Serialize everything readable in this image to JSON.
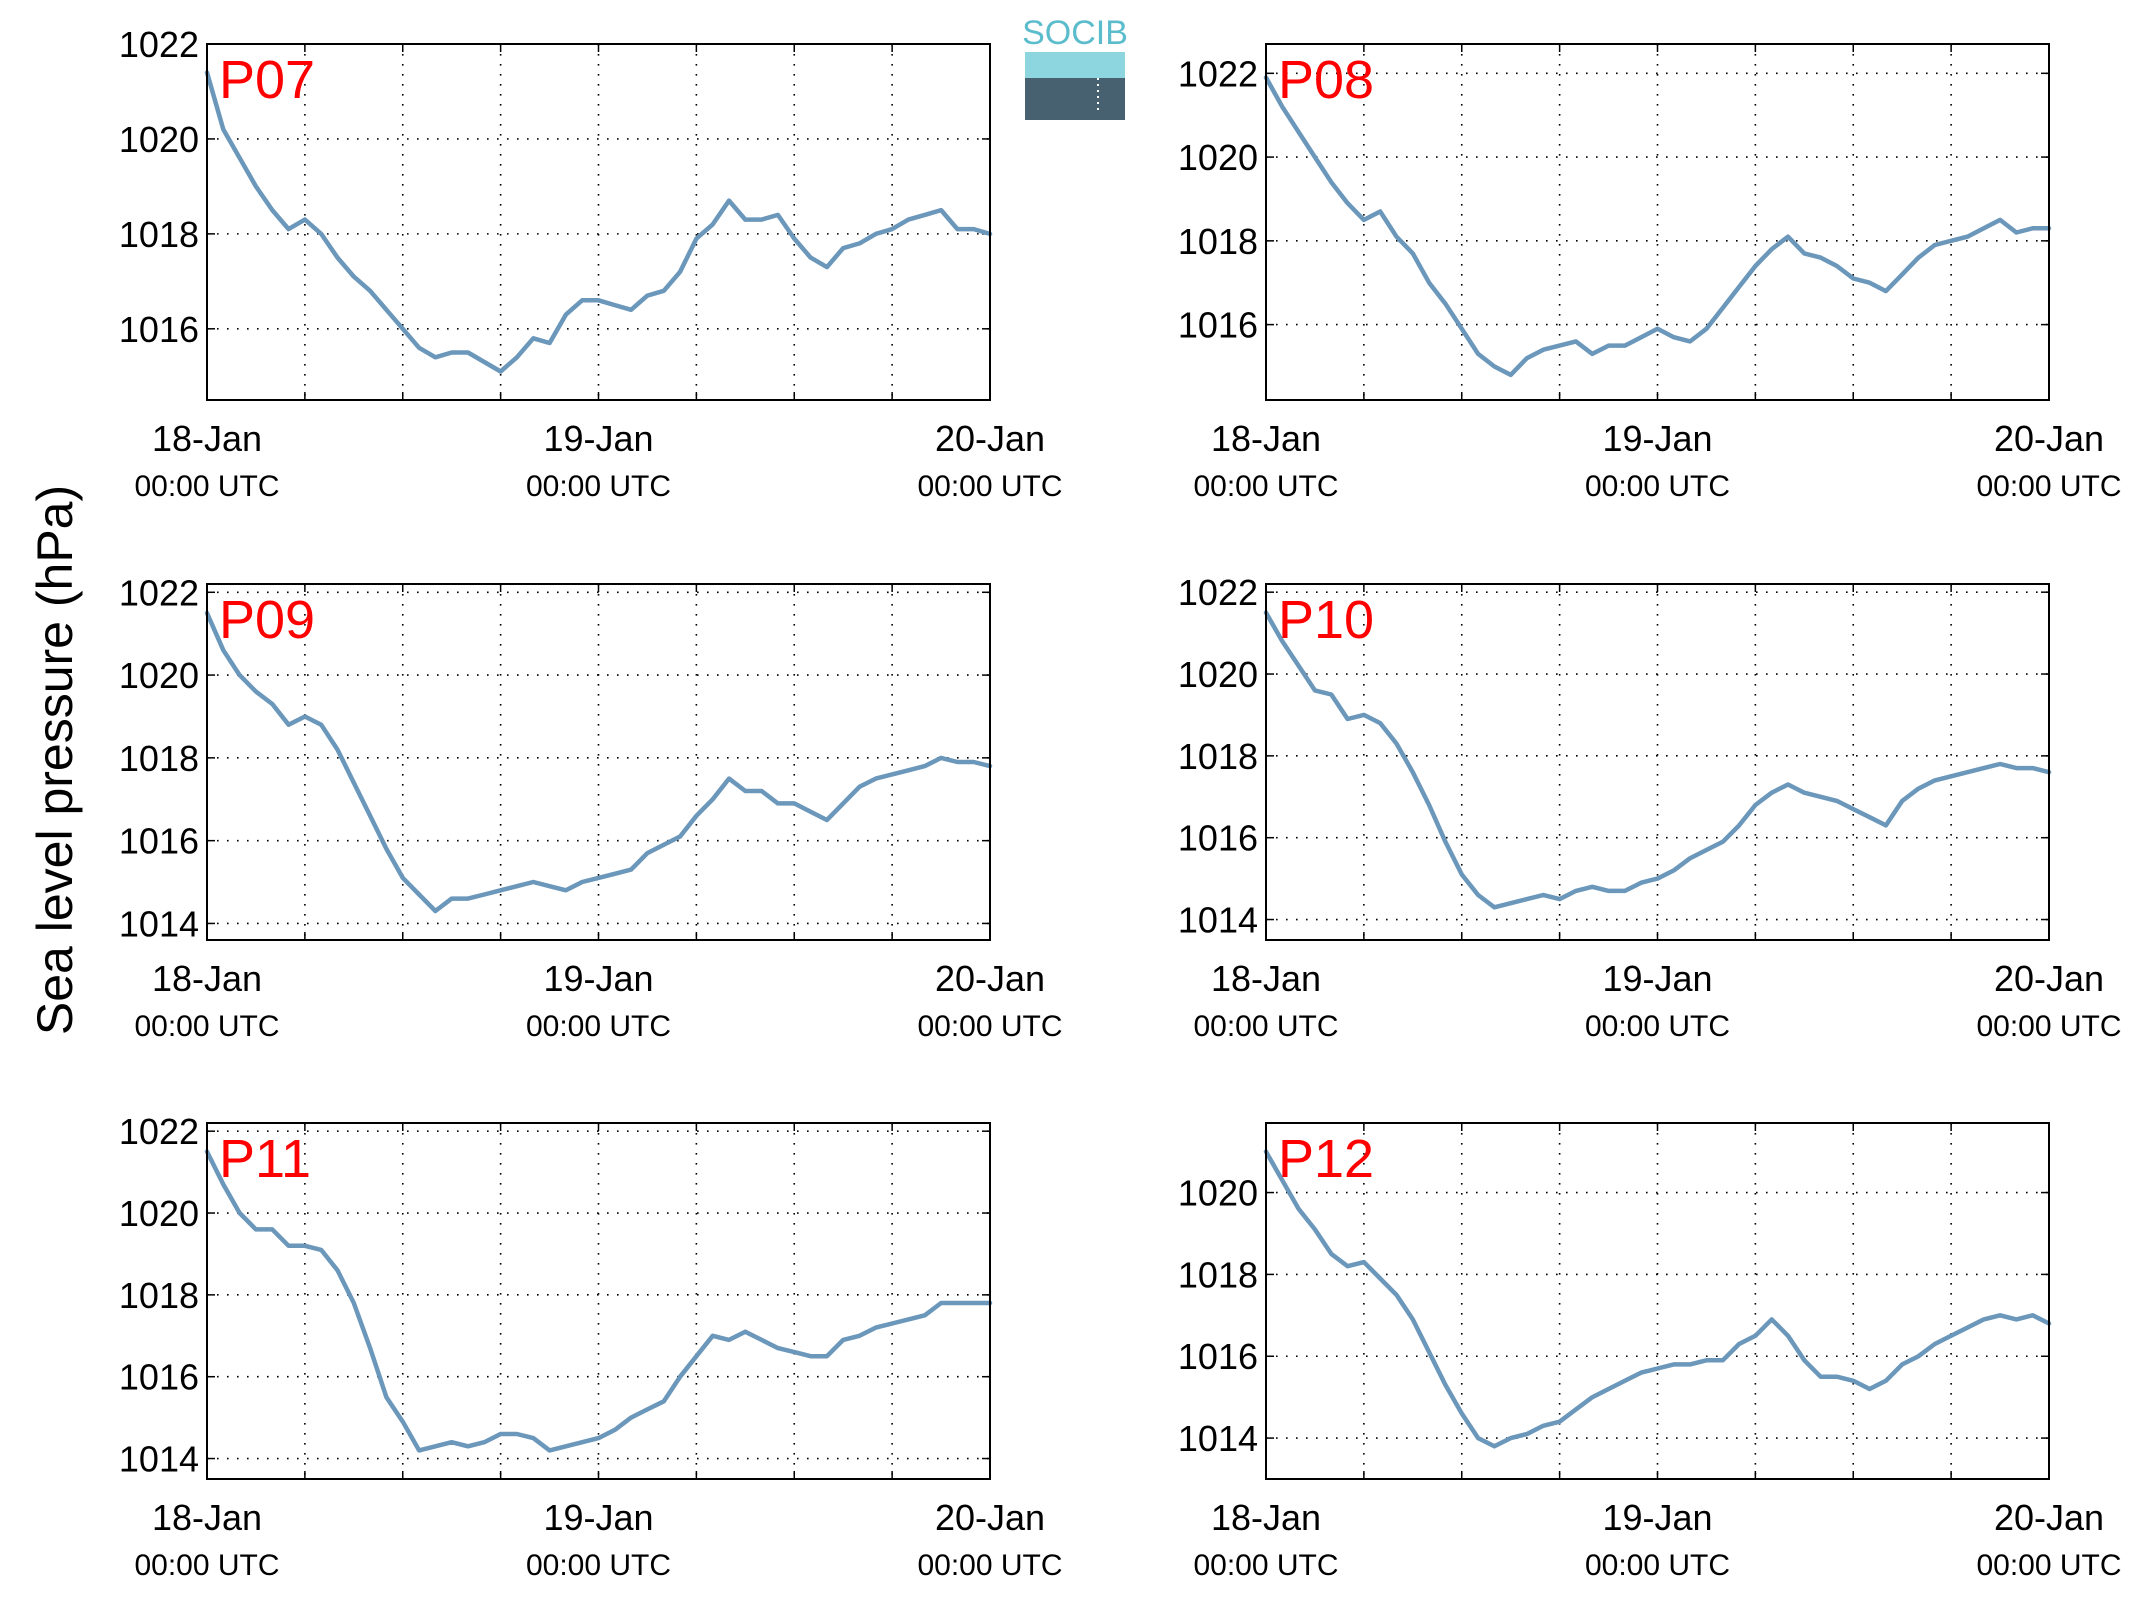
{
  "figure": {
    "ylabel": "Sea level pressure (hPa)",
    "logo": {
      "text": "SOCIB",
      "color": "#5bbccc"
    }
  },
  "style": {
    "line_color": "#6b97bb",
    "label_color": "#ff0000",
    "grid": "dotted"
  },
  "chart_data": [
    {
      "type": "line",
      "title": "P07",
      "x_ticks": [
        {
          "main": "18-Jan",
          "sub": "00:00 UTC"
        },
        {
          "main": "19-Jan",
          "sub": "00:00 UTC"
        },
        {
          "main": "20-Jan",
          "sub": "00:00 UTC"
        }
      ],
      "xlim": [
        0,
        48
      ],
      "ylim": [
        1014.5,
        1022
      ],
      "yticks": [
        1016,
        1018,
        1020,
        1022
      ],
      "series": [
        {
          "x": [
            0,
            1,
            2,
            3,
            4,
            5,
            6,
            7,
            8,
            9,
            10,
            11,
            12,
            13,
            14,
            15,
            16,
            17,
            18,
            19,
            20,
            21,
            22,
            23,
            24,
            25,
            26,
            27,
            28,
            29,
            30,
            31,
            32,
            33,
            34,
            35,
            36,
            37,
            38,
            39,
            40,
            41,
            42,
            43,
            44,
            45,
            46,
            47,
            48
          ],
          "y": [
            1021.4,
            1020.2,
            1019.6,
            1019.0,
            1018.5,
            1018.1,
            1018.3,
            1018.0,
            1017.5,
            1017.1,
            1016.8,
            1016.4,
            1016.0,
            1015.6,
            1015.4,
            1015.5,
            1015.5,
            1015.3,
            1015.1,
            1015.4,
            1015.8,
            1015.7,
            1016.3,
            1016.6,
            1016.6,
            1016.5,
            1016.4,
            1016.7,
            1016.8,
            1017.2,
            1017.9,
            1018.2,
            1018.7,
            1018.3,
            1018.3,
            1018.4,
            1017.9,
            1017.5,
            1017.3,
            1017.7,
            1017.8,
            1018.0,
            1018.1,
            1018.3,
            1018.4,
            1018.5,
            1018.1,
            1018.1,
            1018.0
          ]
        }
      ]
    },
    {
      "type": "line",
      "title": "P08",
      "x_ticks": [
        {
          "main": "18-Jan",
          "sub": "00:00 UTC"
        },
        {
          "main": "19-Jan",
          "sub": "00:00 UTC"
        },
        {
          "main": "20-Jan",
          "sub": "00:00 UTC"
        }
      ],
      "xlim": [
        0,
        48
      ],
      "ylim": [
        1014.2,
        1022.7
      ],
      "yticks": [
        1016,
        1018,
        1020,
        1022
      ],
      "series": [
        {
          "x": [
            0,
            1,
            2,
            3,
            4,
            5,
            6,
            7,
            8,
            9,
            10,
            11,
            12,
            13,
            14,
            15,
            16,
            17,
            18,
            19,
            20,
            21,
            22,
            23,
            24,
            25,
            26,
            27,
            28,
            29,
            30,
            31,
            32,
            33,
            34,
            35,
            36,
            37,
            38,
            39,
            40,
            41,
            42,
            43,
            44,
            45,
            46,
            47,
            48
          ],
          "y": [
            1021.9,
            1021.2,
            1020.6,
            1020.0,
            1019.4,
            1018.9,
            1018.5,
            1018.7,
            1018.1,
            1017.7,
            1017.0,
            1016.5,
            1015.9,
            1015.3,
            1015.0,
            1014.8,
            1015.2,
            1015.4,
            1015.5,
            1015.6,
            1015.3,
            1015.5,
            1015.5,
            1015.7,
            1015.9,
            1015.7,
            1015.6,
            1015.9,
            1016.4,
            1016.9,
            1017.4,
            1017.8,
            1018.1,
            1017.7,
            1017.6,
            1017.4,
            1017.1,
            1017.0,
            1016.8,
            1017.2,
            1017.6,
            1017.9,
            1018.0,
            1018.1,
            1018.3,
            1018.5,
            1018.2,
            1018.3,
            1018.3
          ]
        }
      ]
    },
    {
      "type": "line",
      "title": "P09",
      "x_ticks": [
        {
          "main": "18-Jan",
          "sub": "00:00 UTC"
        },
        {
          "main": "19-Jan",
          "sub": "00:00 UTC"
        },
        {
          "main": "20-Jan",
          "sub": "00:00 UTC"
        }
      ],
      "xlim": [
        0,
        48
      ],
      "ylim": [
        1013.6,
        1022.2
      ],
      "yticks": [
        1014,
        1016,
        1018,
        1020,
        1022
      ],
      "series": [
        {
          "x": [
            0,
            1,
            2,
            3,
            4,
            5,
            6,
            7,
            8,
            9,
            10,
            11,
            12,
            13,
            14,
            15,
            16,
            17,
            18,
            19,
            20,
            21,
            22,
            23,
            24,
            25,
            26,
            27,
            28,
            29,
            30,
            31,
            32,
            33,
            34,
            35,
            36,
            37,
            38,
            39,
            40,
            41,
            42,
            43,
            44,
            45,
            46,
            47,
            48
          ],
          "y": [
            1021.5,
            1020.6,
            1020.0,
            1019.6,
            1019.3,
            1018.8,
            1019.0,
            1018.8,
            1018.2,
            1017.4,
            1016.6,
            1015.8,
            1015.1,
            1014.7,
            1014.3,
            1014.6,
            1014.6,
            1014.7,
            1014.8,
            1014.9,
            1015.0,
            1014.9,
            1014.8,
            1015.0,
            1015.1,
            1015.2,
            1015.3,
            1015.7,
            1015.9,
            1016.1,
            1016.6,
            1017.0,
            1017.5,
            1017.2,
            1017.2,
            1016.9,
            1016.9,
            1016.7,
            1016.5,
            1016.9,
            1017.3,
            1017.5,
            1017.6,
            1017.7,
            1017.8,
            1018.0,
            1017.9,
            1017.9,
            1017.8
          ]
        }
      ]
    },
    {
      "type": "line",
      "title": "P10",
      "x_ticks": [
        {
          "main": "18-Jan",
          "sub": "00:00 UTC"
        },
        {
          "main": "19-Jan",
          "sub": "00:00 UTC"
        },
        {
          "main": "20-Jan",
          "sub": "00:00 UTC"
        }
      ],
      "xlim": [
        0,
        48
      ],
      "ylim": [
        1013.5,
        1022.2
      ],
      "yticks": [
        1014,
        1016,
        1018,
        1020,
        1022
      ],
      "series": [
        {
          "x": [
            0,
            1,
            2,
            3,
            4,
            5,
            6,
            7,
            8,
            9,
            10,
            11,
            12,
            13,
            14,
            15,
            16,
            17,
            18,
            19,
            20,
            21,
            22,
            23,
            24,
            25,
            26,
            27,
            28,
            29,
            30,
            31,
            32,
            33,
            34,
            35,
            36,
            37,
            38,
            39,
            40,
            41,
            42,
            43,
            44,
            45,
            46,
            47,
            48
          ],
          "y": [
            1021.5,
            1020.8,
            1020.2,
            1019.6,
            1019.5,
            1018.9,
            1019.0,
            1018.8,
            1018.3,
            1017.6,
            1016.8,
            1015.9,
            1015.1,
            1014.6,
            1014.3,
            1014.4,
            1014.5,
            1014.6,
            1014.5,
            1014.7,
            1014.8,
            1014.7,
            1014.7,
            1014.9,
            1015.0,
            1015.2,
            1015.5,
            1015.7,
            1015.9,
            1016.3,
            1016.8,
            1017.1,
            1017.3,
            1017.1,
            1017.0,
            1016.9,
            1016.7,
            1016.5,
            1016.3,
            1016.9,
            1017.2,
            1017.4,
            1017.5,
            1017.6,
            1017.7,
            1017.8,
            1017.7,
            1017.7,
            1017.6
          ]
        }
      ]
    },
    {
      "type": "line",
      "title": "P11",
      "x_ticks": [
        {
          "main": "18-Jan",
          "sub": "00:00 UTC"
        },
        {
          "main": "19-Jan",
          "sub": "00:00 UTC"
        },
        {
          "main": "20-Jan",
          "sub": "00:00 UTC"
        }
      ],
      "xlim": [
        0,
        48
      ],
      "ylim": [
        1013.5,
        1022.2
      ],
      "yticks": [
        1014,
        1016,
        1018,
        1020,
        1022
      ],
      "series": [
        {
          "x": [
            0,
            1,
            2,
            3,
            4,
            5,
            6,
            7,
            8,
            9,
            10,
            11,
            12,
            13,
            14,
            15,
            16,
            17,
            18,
            19,
            20,
            21,
            22,
            23,
            24,
            25,
            26,
            27,
            28,
            29,
            30,
            31,
            32,
            33,
            34,
            35,
            36,
            37,
            38,
            39,
            40,
            41,
            42,
            43,
            44,
            45,
            46,
            47,
            48
          ],
          "y": [
            1021.5,
            1020.7,
            1020.0,
            1019.6,
            1019.6,
            1019.2,
            1019.2,
            1019.1,
            1018.6,
            1017.8,
            1016.7,
            1015.5,
            1014.9,
            1014.2,
            1014.3,
            1014.4,
            1014.3,
            1014.4,
            1014.6,
            1014.6,
            1014.5,
            1014.2,
            1014.3,
            1014.4,
            1014.5,
            1014.7,
            1015.0,
            1015.2,
            1015.4,
            1016.0,
            1016.5,
            1017.0,
            1016.9,
            1017.1,
            1016.9,
            1016.7,
            1016.6,
            1016.5,
            1016.5,
            1016.9,
            1017.0,
            1017.2,
            1017.3,
            1017.4,
            1017.5,
            1017.8,
            1017.8,
            1017.8,
            1017.8
          ]
        }
      ]
    },
    {
      "type": "line",
      "title": "P12",
      "x_ticks": [
        {
          "main": "18-Jan",
          "sub": "00:00 UTC"
        },
        {
          "main": "19-Jan",
          "sub": "00:00 UTC"
        },
        {
          "main": "20-Jan",
          "sub": "00:00 UTC"
        }
      ],
      "xlim": [
        0,
        48
      ],
      "ylim": [
        1013,
        1021.7
      ],
      "yticks": [
        1014,
        1016,
        1018,
        1020
      ],
      "series": [
        {
          "x": [
            0,
            1,
            2,
            3,
            4,
            5,
            6,
            7,
            8,
            9,
            10,
            11,
            12,
            13,
            14,
            15,
            16,
            17,
            18,
            19,
            20,
            21,
            22,
            23,
            24,
            25,
            26,
            27,
            28,
            29,
            30,
            31,
            32,
            33,
            34,
            35,
            36,
            37,
            38,
            39,
            40,
            41,
            42,
            43,
            44,
            45,
            46,
            47,
            48
          ],
          "y": [
            1021.0,
            1020.3,
            1019.6,
            1019.1,
            1018.5,
            1018.2,
            1018.3,
            1017.9,
            1017.5,
            1016.9,
            1016.1,
            1015.3,
            1014.6,
            1014.0,
            1013.8,
            1014.0,
            1014.1,
            1014.3,
            1014.4,
            1014.7,
            1015.0,
            1015.2,
            1015.4,
            1015.6,
            1015.7,
            1015.8,
            1015.8,
            1015.9,
            1015.9,
            1016.3,
            1016.5,
            1016.9,
            1016.5,
            1015.9,
            1015.5,
            1015.5,
            1015.4,
            1015.2,
            1015.4,
            1015.8,
            1016.0,
            1016.3,
            1016.5,
            1016.7,
            1016.9,
            1017.0,
            1016.9,
            1017.0,
            1016.8
          ]
        }
      ]
    }
  ]
}
